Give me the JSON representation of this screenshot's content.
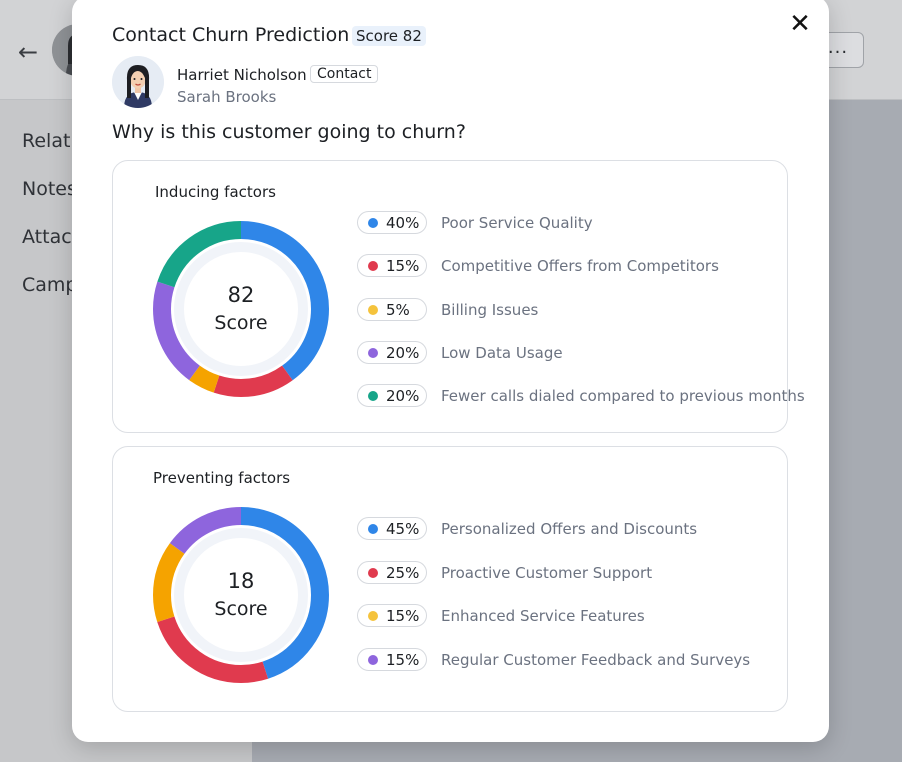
{
  "background": {
    "back_icon": "arrow-left-icon",
    "more_label": "...",
    "nav_items": [
      {
        "label": "Relat"
      },
      {
        "label": "Notes"
      },
      {
        "label": "Attac"
      },
      {
        "label": "Camp"
      }
    ]
  },
  "modal": {
    "title": "Contact Churn Prediction",
    "score_label": "Score 82",
    "close_icon": "close-icon",
    "contact": {
      "name": "Harriet Nicholson",
      "tag": "Contact",
      "owner": "Sarah Brooks"
    },
    "question": "Why is this customer going to churn?",
    "inducing": {
      "title": "Inducing factors",
      "score": "82",
      "score_label": "Score",
      "factors": [
        {
          "percent": "40%",
          "label": "Poor Service Quality",
          "color": "#2f86e8",
          "value": 40
        },
        {
          "percent": "15%",
          "label": "Competitive Offers from Competitors",
          "color": "#e03a4e",
          "value": 15
        },
        {
          "percent": "5%",
          "label": "Billing Issues",
          "color": "#f5a300",
          "value": 5
        },
        {
          "percent": "20%",
          "label": "Low Data Usage",
          "color": "#8e65dd",
          "value": 20
        },
        {
          "percent": "20%",
          "label": "Fewer calls dialed compared to previous months",
          "color": "#17a589",
          "value": 20
        }
      ]
    },
    "preventing": {
      "title": "Preventing factors",
      "score": "18",
      "score_label": "Score",
      "factors": [
        {
          "percent": "45%",
          "label": "Personalized Offers and Discounts",
          "color": "#2f86e8",
          "value": 45
        },
        {
          "percent": "25%",
          "label": "Proactive Customer Support",
          "color": "#e03a4e",
          "value": 25
        },
        {
          "percent": "15%",
          "label": "Enhanced Service Features",
          "color": "#f5a300",
          "value": 15
        },
        {
          "percent": "15%",
          "label": "Regular Customer Feedback and Surveys",
          "color": "#8e65dd",
          "value": 15
        }
      ]
    }
  }
}
